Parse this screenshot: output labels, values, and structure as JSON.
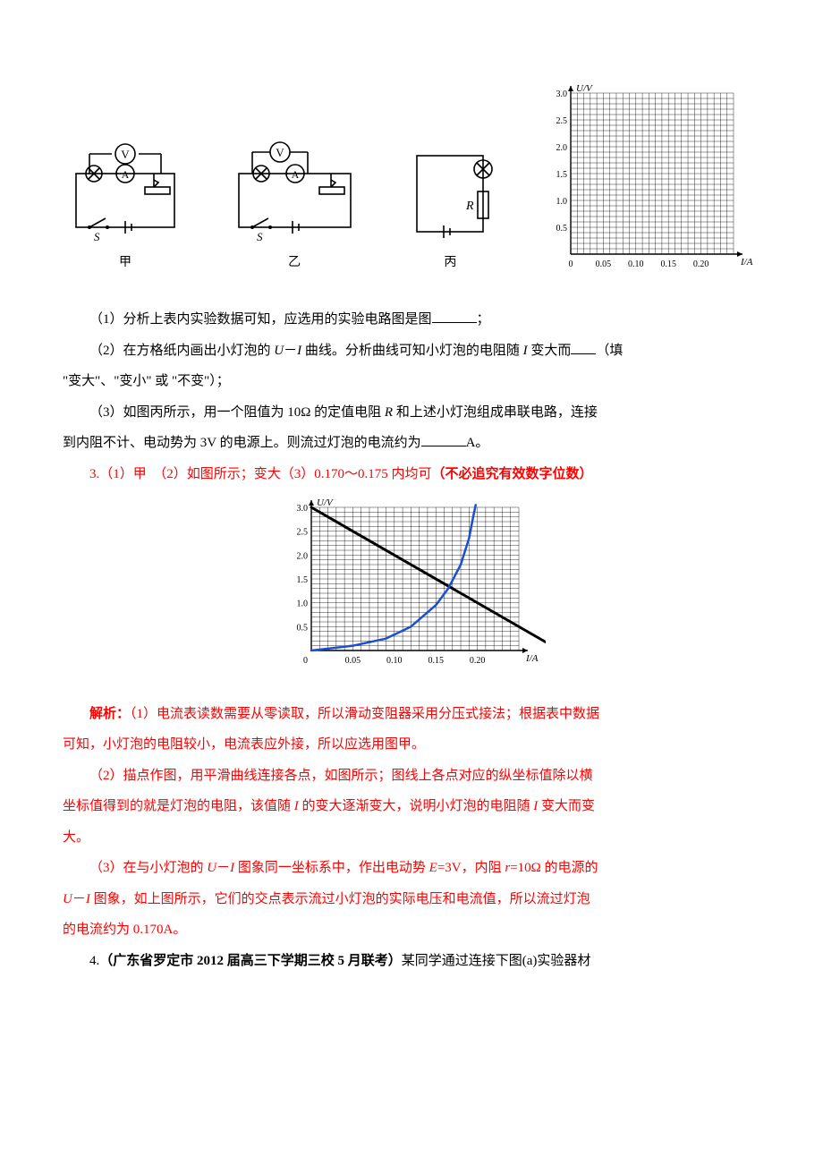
{
  "graph_blank": {
    "type": "grid",
    "y_label": "U/V",
    "x_label": "I/A",
    "y_label_fontsize": 11,
    "x_label_fontsize": 11,
    "y_max": 3.0,
    "y_major_step": 0.5,
    "y_minor_per_major": 5,
    "x_max": 0.25,
    "x_major_step": 0.05,
    "x_minor_per_major": 5,
    "y_ticks": [
      "0.5",
      "1.0",
      "1.5",
      "2.0",
      "2.5",
      "3.0"
    ],
    "x_ticks": [
      "0",
      "0.05",
      "0.10",
      "0.15",
      "0.20"
    ],
    "tick_fontsize": 10,
    "grid_color": "#000000",
    "background_color": "#ffffff"
  },
  "circuits": {
    "jia_label": "甲",
    "yi_label": "乙",
    "bing_label": "丙",
    "voltmeter_glyph": "V",
    "ammeter_glyph": "A",
    "bulb_glyph": "⊗",
    "switch_label": "S",
    "resistor_label": "R",
    "stroke_color": "#000000"
  },
  "q1": {
    "text_a": "（1）分析上表内实验数据可知，应选用的实验电路图是图",
    "text_b": "；"
  },
  "q2": {
    "text_a": "（2）在方格纸内画出小灯泡的 ",
    "ui_a": "U",
    "dash": "－",
    "ui_b": "I",
    "text_b": " 曲线。分析曲线可知小灯泡的电阻随 ",
    "var_i": "I",
    "text_c": " 变大而",
    "text_d": "（填",
    "line2": "\"变大\"、\"变小\" 或 \"不变\"）；"
  },
  "q3": {
    "text_a": "（3）如图丙所示，用一个阻值为 10Ω 的定值电阻 ",
    "var_r": "R",
    "text_b": " 和上述小灯泡组成串联电路，连接",
    "line2a": "到内阻不计、电动势为 3V 的电源上。则流过灯泡的电流约为",
    "line2b": "A。"
  },
  "ans": {
    "main": "3.（1）甲　（2）如图所示；变大（3）0.170～0.175 内均可",
    "note": "（不必追究有效数字位数）"
  },
  "graph_answer": {
    "type": "line",
    "y_label": "U/V",
    "x_label": "I/A",
    "y_max": 3.0,
    "y_major_step": 0.5,
    "y_minor_per_major": 5,
    "x_max": 0.25,
    "x_major_step": 0.05,
    "x_minor_per_major": 5,
    "y_ticks": [
      "0.5",
      "1.0",
      "1.5",
      "2.0",
      "2.5",
      "3.0"
    ],
    "x_ticks": [
      "0.05",
      "0.10",
      "0.15",
      "0.20"
    ],
    "tick_fontsize": 10,
    "grid_color": "#000000",
    "straight_line": {
      "color": "#000000",
      "width": 3,
      "points": [
        [
          0,
          3.0
        ],
        [
          0.3,
          0.0
        ]
      ]
    },
    "bulb_curve": {
      "color": "#1b4fd1",
      "width": 2.5,
      "points": [
        [
          0,
          0
        ],
        [
          0.05,
          0.1
        ],
        [
          0.09,
          0.25
        ],
        [
          0.12,
          0.5
        ],
        [
          0.15,
          0.95
        ],
        [
          0.165,
          1.3
        ],
        [
          0.18,
          1.8
        ],
        [
          0.19,
          2.35
        ],
        [
          0.195,
          2.8
        ],
        [
          0.198,
          3.05
        ]
      ]
    }
  },
  "expl_label": "解析：",
  "expl_p1": {
    "a": "（1）电流表读数需要从零读取，所以滑动变阻器采用分压式接法；根据表中数据",
    "b": "可知，小灯泡的电阻较小，电流表应外接，所以应选用图甲。"
  },
  "expl_p2": {
    "a": "（2）描点作图，用平滑曲线连接各点，如图所示；图线上各点对应的纵坐标值除以横",
    "b": "坐标值得到的就是灯泡的电阻，该值随 ",
    "var_i1": "I",
    "c": " 的变大逐渐变大，说明小灯泡的电阻随 ",
    "var_i2": "I",
    "d": " 变大而变",
    "e": "大。"
  },
  "expl_p3": {
    "a": "（3）在与小灯泡的 ",
    "ui_a": "U",
    "dash": "－",
    "ui_b": "I",
    "b": " 图象同一坐标系中，作出电动势 ",
    "var_e": "E",
    "eq1": "=3V，内阻 ",
    "var_r": "r",
    "eq2": "=10Ω 的电源的",
    "line2a": "",
    "ui_a2": "U",
    "ui_b2": "I",
    "line2b": " 图象，如上图所示，它们的交点表示流过小灯泡的实际电压和电流值，所以流过灯泡",
    "line3": "的电流约为 0.170A。"
  },
  "q4": {
    "num": "4.",
    "src": "（广东省罗定市 2012 届高三下学期三校 5 月联考）",
    "text": "某同学通过连接下图(a)实验器材"
  },
  "colors": {
    "text": "#000000",
    "red": "#ff0000",
    "blue": "#1b4fd1",
    "background": "#ffffff"
  }
}
